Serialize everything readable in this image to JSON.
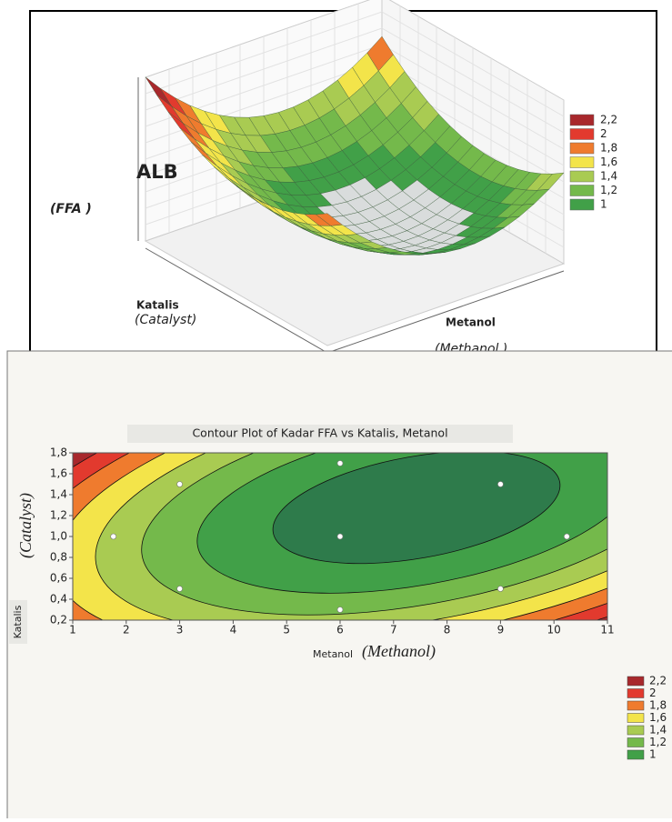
{
  "chart_data": [
    {
      "type": "surface",
      "z_label": "ALB",
      "z_sublabel": "(FFA )",
      "y_label": "Katalis",
      "y_sublabel": "(Catalyst)",
      "x_label": "Metanol",
      "x_sublabel": "(Methanol )",
      "levels": [
        {
          "value": 2.2,
          "label": "2,2"
        },
        2,
        {
          "value": 1.8,
          "label": "1,8"
        },
        {
          "value": 1.6,
          "label": "1,6"
        },
        {
          "value": 1.4,
          "label": "1,4"
        },
        {
          "value": 1.2,
          "label": "1,2"
        },
        1
      ],
      "colors": [
        "#a8282c",
        "#e23a2e",
        "#ef7b2e",
        "#f3e44a",
        "#a9cb52",
        "#74b94b",
        "#41a048"
      ]
    },
    {
      "type": "contour",
      "title": "Contour Plot of Kadar FFA vs Katalis, Metanol",
      "x_label": "Metanol",
      "x_sublabel": "(Methanol)",
      "y_label": "Katalis",
      "y_sublabel": "(Catalyst)",
      "xlim": [
        1,
        11
      ],
      "ylim": [
        0.2,
        1.8
      ],
      "xticks": [
        1,
        2,
        3,
        4,
        5,
        6,
        7,
        8,
        9,
        10,
        11
      ],
      "yticks": [
        {
          "value": 0.2,
          "label": "0,2"
        },
        {
          "value": 0.4,
          "label": "0,4"
        },
        {
          "value": 0.6,
          "label": "0,6"
        },
        {
          "value": 0.8,
          "label": "0,8"
        },
        {
          "value": 1.0,
          "label": "1,0"
        },
        {
          "value": 1.2,
          "label": "1,2"
        },
        {
          "value": 1.4,
          "label": "1,4"
        },
        {
          "value": 1.6,
          "label": "1,6"
        },
        {
          "value": 1.8,
          "label": "1,8"
        }
      ],
      "levels": [
        {
          "value": 2.2,
          "label": "2,2"
        },
        2,
        {
          "value": 1.8,
          "label": "1,8"
        },
        {
          "value": 1.6,
          "label": "1,6"
        },
        {
          "value": 1.4,
          "label": "1,4"
        },
        {
          "value": 1.2,
          "label": "1,2"
        },
        1
      ],
      "colors": [
        "#a8282c",
        "#e23a2e",
        "#ef7b2e",
        "#f3e44a",
        "#a9cb52",
        "#74b94b",
        "#41a048"
      ],
      "points": {
        "x": [
          3,
          6,
          9,
          1.76,
          6,
          10.24,
          3,
          9,
          6
        ],
        "y": [
          1.5,
          1.7,
          1.5,
          1.0,
          1.0,
          1.0,
          0.5,
          0.5,
          0.3
        ]
      }
    }
  ]
}
